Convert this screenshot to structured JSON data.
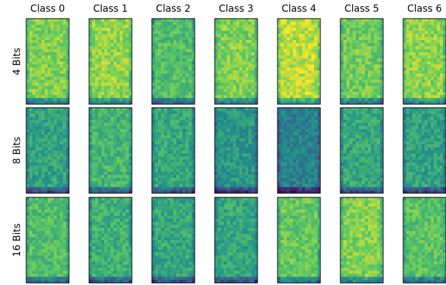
{
  "columns": [
    "Class 0",
    "Class 1",
    "Class 2",
    "Class 3",
    "Class 4",
    "Class 5",
    "Class 6"
  ],
  "rows": [
    "4 Bits",
    "8 Bits",
    "16 Bits"
  ]
}
